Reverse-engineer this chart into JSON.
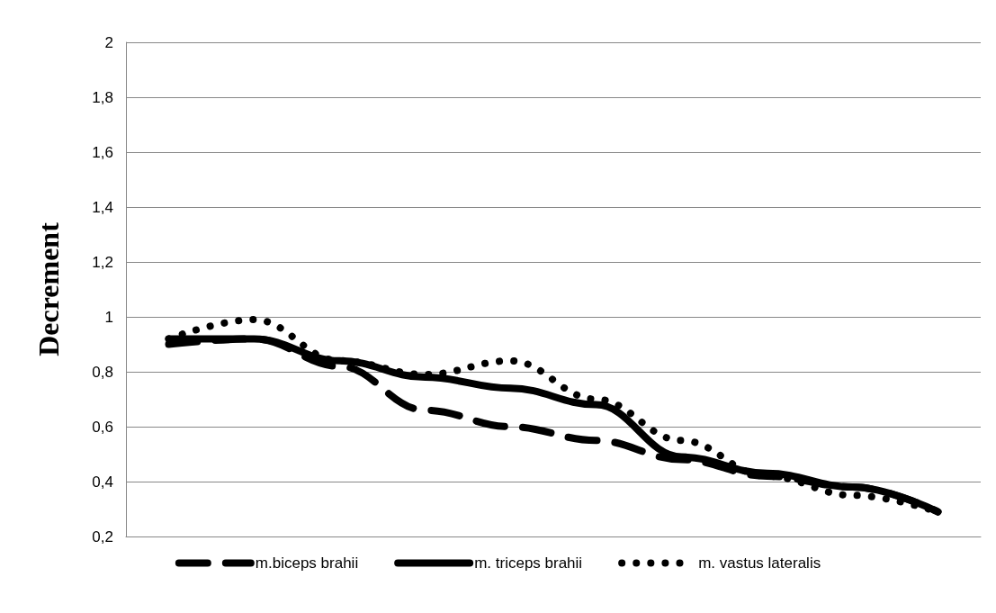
{
  "chart_data": {
    "type": "line",
    "ylabel": "Decrement",
    "categories": [
      null,
      null,
      null,
      null,
      null,
      null,
      null,
      null,
      null,
      null
    ],
    "series": [
      {
        "name": "m.biceps brahii",
        "color": "#000000",
        "line_style": "dashed",
        "values": [
          0.9,
          0.92,
          0.82,
          0.66,
          0.6,
          0.55,
          0.48,
          0.42,
          0.38,
          0.29
        ]
      },
      {
        "name": "m. triceps brahii",
        "color": "#000000",
        "line_style": "solid",
        "values": [
          0.92,
          0.92,
          0.84,
          0.78,
          0.74,
          0.68,
          0.49,
          0.43,
          0.38,
          0.29
        ]
      },
      {
        "name": "m. vastus lateralis",
        "color": "#000000",
        "line_style": "dotted",
        "values": [
          0.92,
          0.99,
          0.84,
          0.79,
          0.84,
          0.7,
          0.55,
          0.42,
          0.35,
          0.29
        ]
      }
    ],
    "ylim": [
      0.2,
      2
    ],
    "yticks": [
      {
        "value": 0.2,
        "label": "0,2"
      },
      {
        "value": 0.4,
        "label": "0,4"
      },
      {
        "value": 0.6,
        "label": "0,6"
      },
      {
        "value": 0.8,
        "label": "0,8"
      },
      1,
      {
        "value": 1.2,
        "label": "1,2"
      },
      {
        "value": 1.4,
        "label": "1,4"
      },
      {
        "value": 1.6,
        "label": "1,6"
      },
      {
        "value": 1.8,
        "label": "1,8"
      },
      2
    ],
    "grid": "y",
    "legend": "bottom",
    "marker": "none"
  }
}
